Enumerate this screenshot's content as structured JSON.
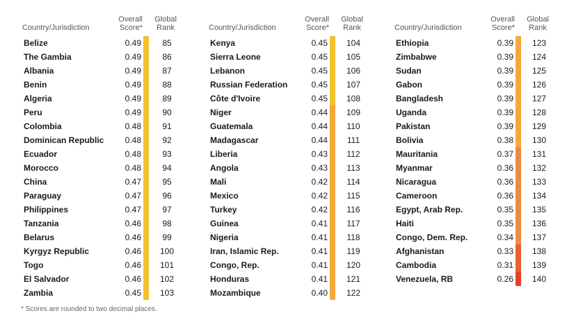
{
  "headers": {
    "country": "Country/Jurisdiction",
    "score_line1": "Overall",
    "score_line2": "Score*",
    "rank_line1": "Global",
    "rank_line2": "Rank"
  },
  "colors": {
    "yellow": "#f2c12e",
    "light_orange": "#f5a83a",
    "orange": "#f08a3e",
    "red_orange": "#e85f34",
    "red": "#e2412d",
    "row_alt": "#eef0f2"
  },
  "columns": [
    [
      {
        "country": "Belize",
        "score": "0.49",
        "rank": "85"
      },
      {
        "country": "The Gambia",
        "score": "0.49",
        "rank": "86"
      },
      {
        "country": "Albania",
        "score": "0.49",
        "rank": "87"
      },
      {
        "country": "Benin",
        "score": "0.49",
        "rank": "88"
      },
      {
        "country": "Algeria",
        "score": "0.49",
        "rank": "89"
      },
      {
        "country": "Peru",
        "score": "0.49",
        "rank": "90"
      },
      {
        "country": "Colombia",
        "score": "0.48",
        "rank": "91"
      },
      {
        "country": "Dominican Republic",
        "score": "0.48",
        "rank": "92"
      },
      {
        "country": "Ecuador",
        "score": "0.48",
        "rank": "93"
      },
      {
        "country": "Morocco",
        "score": "0.48",
        "rank": "94"
      },
      {
        "country": "China",
        "score": "0.47",
        "rank": "95"
      },
      {
        "country": "Paraguay",
        "score": "0.47",
        "rank": "96"
      },
      {
        "country": "Philippines",
        "score": "0.47",
        "rank": "97"
      },
      {
        "country": "Tanzania",
        "score": "0.46",
        "rank": "98"
      },
      {
        "country": "Belarus",
        "score": "0.46",
        "rank": "99"
      },
      {
        "country": "Kyrgyz Republic",
        "score": "0.46",
        "rank": "100"
      },
      {
        "country": "Togo",
        "score": "0.46",
        "rank": "101"
      },
      {
        "country": "El Salvador",
        "score": "0.46",
        "rank": "102"
      },
      {
        "country": "Zambia",
        "score": "0.45",
        "rank": "103"
      }
    ],
    [
      {
        "country": "Kenya",
        "score": "0.45",
        "rank": "104"
      },
      {
        "country": "Sierra Leone",
        "score": "0.45",
        "rank": "105"
      },
      {
        "country": "Lebanon",
        "score": "0.45",
        "rank": "106"
      },
      {
        "country": "Russian Federation",
        "score": "0.45",
        "rank": "107"
      },
      {
        "country": "Côte d'Ivoire",
        "score": "0.45",
        "rank": "108"
      },
      {
        "country": "Niger",
        "score": "0.44",
        "rank": "109"
      },
      {
        "country": "Guatemala",
        "score": "0.44",
        "rank": "110"
      },
      {
        "country": "Madagascar",
        "score": "0.44",
        "rank": "111"
      },
      {
        "country": "Liberia",
        "score": "0.43",
        "rank": "112"
      },
      {
        "country": "Angola",
        "score": "0.43",
        "rank": "113"
      },
      {
        "country": "Mali",
        "score": "0.42",
        "rank": "114"
      },
      {
        "country": "Mexico",
        "score": "0.42",
        "rank": "115"
      },
      {
        "country": "Turkey",
        "score": "0.42",
        "rank": "116"
      },
      {
        "country": "Guinea",
        "score": "0.41",
        "rank": "117"
      },
      {
        "country": "Nigeria",
        "score": "0.41",
        "rank": "118"
      },
      {
        "country": "Iran, Islamic Rep.",
        "score": "0.41",
        "rank": "119"
      },
      {
        "country": "Congo, Rep.",
        "score": "0.41",
        "rank": "120"
      },
      {
        "country": "Honduras",
        "score": "0.41",
        "rank": "121"
      },
      {
        "country": "Mozambique",
        "score": "0.40",
        "rank": "122"
      }
    ],
    [
      {
        "country": "Ethiopia",
        "score": "0.39",
        "rank": "123"
      },
      {
        "country": "Zimbabwe",
        "score": "0.39",
        "rank": "124"
      },
      {
        "country": "Sudan",
        "score": "0.39",
        "rank": "125"
      },
      {
        "country": "Gabon",
        "score": "0.39",
        "rank": "126"
      },
      {
        "country": "Bangladesh",
        "score": "0.39",
        "rank": "127"
      },
      {
        "country": "Uganda",
        "score": "0.39",
        "rank": "128"
      },
      {
        "country": "Pakistan",
        "score": "0.39",
        "rank": "129"
      },
      {
        "country": "Bolivia",
        "score": "0.38",
        "rank": "130"
      },
      {
        "country": "Mauritania",
        "score": "0.37",
        "rank": "131"
      },
      {
        "country": "Myanmar",
        "score": "0.36",
        "rank": "132"
      },
      {
        "country": "Nicaragua",
        "score": "0.36",
        "rank": "133"
      },
      {
        "country": "Cameroon",
        "score": "0.36",
        "rank": "134"
      },
      {
        "country": "Egypt, Arab Rep.",
        "score": "0.35",
        "rank": "135"
      },
      {
        "country": "Haiti",
        "score": "0.35",
        "rank": "136"
      },
      {
        "country": "Congo, Dem. Rep.",
        "score": "0.34",
        "rank": "137"
      },
      {
        "country": "Afghanistan",
        "score": "0.33",
        "rank": "138"
      },
      {
        "country": "Cambodia",
        "score": "0.31",
        "rank": "139"
      },
      {
        "country": "Venezuela, RB",
        "score": "0.26",
        "rank": "140"
      }
    ]
  ],
  "footnote": "* Scores are rounded to two decimal places."
}
